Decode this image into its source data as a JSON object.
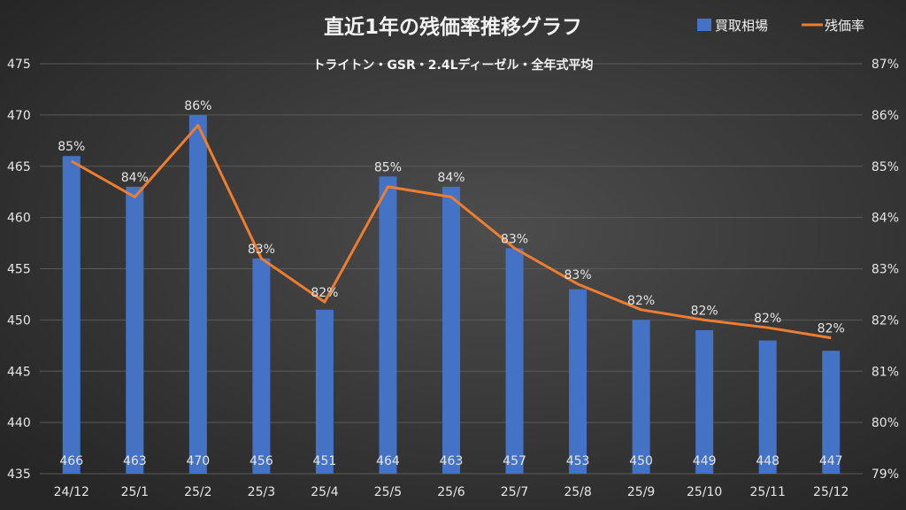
{
  "chart_data": {
    "type": "bar+line",
    "title": "直近1年の残価率推移グラフ",
    "subtitle": "トライトン・GSR・2.4Lディーゼル・全年式平均",
    "categories": [
      "24/12",
      "25/1",
      "25/2",
      "25/3",
      "25/4",
      "25/5",
      "25/6",
      "25/7",
      "25/8",
      "25/9",
      "25/10",
      "25/11",
      "25/12"
    ],
    "series": [
      {
        "name": "買取相場",
        "type": "bar",
        "axis": "left",
        "color": "#4472c4",
        "values": [
          466,
          463,
          470,
          456,
          451,
          464,
          463,
          457,
          453,
          450,
          449,
          448,
          447
        ],
        "labels": [
          "466",
          "463",
          "470",
          "456",
          "451",
          "464",
          "463",
          "457",
          "453",
          "450",
          "449",
          "448",
          "447"
        ]
      },
      {
        "name": "残価率",
        "type": "line",
        "axis": "right",
        "color": "#ed7d31",
        "values": [
          85.1,
          84.4,
          85.8,
          83.2,
          82.35,
          84.6,
          84.4,
          83.4,
          82.7,
          82.2,
          82.0,
          81.85,
          81.65
        ],
        "labels": [
          "85%",
          "84%",
          "86%",
          "83%",
          "82%",
          "85%",
          "84%",
          "83%",
          "83%",
          "82%",
          "82%",
          "82%",
          "82%"
        ]
      }
    ],
    "y_left": {
      "min": 435,
      "max": 475,
      "ticks": [
        "435",
        "440",
        "445",
        "450",
        "455",
        "460",
        "465",
        "470",
        "475"
      ]
    },
    "y_right": {
      "min": 79,
      "max": 87,
      "ticks": [
        "79%",
        "80%",
        "81%",
        "82%",
        "83%",
        "84%",
        "85%",
        "86%",
        "87%"
      ]
    },
    "grid": true,
    "legend": "top-right"
  }
}
